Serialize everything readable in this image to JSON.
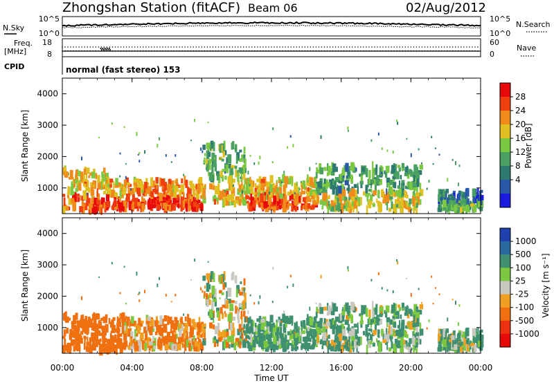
{
  "header": {
    "title": "Zhongshan Station (fitACF)",
    "beam": "Beam 06",
    "date": "02/Aug/2012"
  },
  "noise_panel": {
    "left_label": "N.Sky",
    "right_label": "N.Search",
    "left_ticks": [
      "10^5",
      "10^0"
    ],
    "right_ticks": [
      "10^5",
      "10^0"
    ]
  },
  "freq_panel": {
    "left_label_line1": "Freq.",
    "left_label_line2": "[MHz]",
    "right_label": "Nave",
    "left_ticks": [
      "18",
      "8"
    ],
    "right_ticks": [
      "60",
      "0"
    ]
  },
  "cpid_panel": {
    "label": "CPID",
    "value": "normal (fast stereo) 153"
  },
  "power_panel": {
    "ylabel": "Slant Range [km]",
    "colorbar_label": "Power [dB]",
    "colorbar_ticks": [
      "28",
      "24",
      "20",
      "16",
      "12",
      "8",
      "4"
    ],
    "colorbar_colors": [
      "#e80a0a",
      "#f04010",
      "#f08a1a",
      "#e0c020",
      "#7bc843",
      "#49a060",
      "#2e7a70",
      "#2a58a8",
      "#1b1be0"
    ]
  },
  "velocity_panel": {
    "ylabel": "Slant Range [km]",
    "colorbar_label": "Velocity [m s⁻¹]",
    "colorbar_ticks": [
      "1000",
      "500",
      "100",
      "25",
      "-25",
      "-100",
      "-500",
      "-1000"
    ],
    "colorbar_colors": [
      "#2040b0",
      "#2a6aa0",
      "#3f9070",
      "#7cc840",
      "#c8c8c0",
      "#f0a020",
      "#f07010",
      "#ec3010",
      "#e80a0a"
    ]
  },
  "x_axis": {
    "label": "Time UT",
    "ticks": [
      "00:00",
      "04:00",
      "08:00",
      "12:00",
      "16:00",
      "20:00",
      "00:00"
    ]
  },
  "chart_data": [
    {
      "type": "line",
      "name": "noise",
      "ylabel_left": "N.Sky",
      "ylabel_right": "N.Search",
      "x_range_hours": [
        0,
        24
      ],
      "y_scale": "log",
      "ylim": [
        1,
        100000
      ]
    },
    {
      "type": "scatter",
      "name": "frequency",
      "ylabel_left": "Freq. [MHz]",
      "ylabel_right": "Nave",
      "left_ylim": [
        8,
        18
      ],
      "right_ylim": [
        0,
        60
      ],
      "x_range_hours": [
        0,
        24
      ]
    },
    {
      "type": "heatmap",
      "name": "power",
      "title": "Beam 06",
      "xlabel": "Time UT",
      "ylabel": "Slant Range [km]",
      "x_range_hours": [
        0,
        24
      ],
      "ylim": [
        180,
        4500
      ],
      "y_ticks": [
        1000,
        2000,
        3000,
        4000
      ],
      "colorbar_label": "Power [dB]",
      "colorbar_ticks": [
        4,
        8,
        12,
        16,
        20,
        24,
        28
      ],
      "echo_regions": [
        {
          "t": [
            0.0,
            2.5
          ],
          "range_km": [
            250,
            1600
          ],
          "power_db": 22
        },
        {
          "t": [
            2.5,
            8.0
          ],
          "range_km": [
            350,
            1250
          ],
          "power_db": 24
        },
        {
          "t": [
            8.0,
            10.5
          ],
          "range_km": [
            500,
            2400
          ],
          "power_db": 16
        },
        {
          "t": [
            10.5,
            14.5
          ],
          "range_km": [
            350,
            1300
          ],
          "power_db": 22
        },
        {
          "t": [
            14.5,
            20.5
          ],
          "range_km": [
            300,
            1700
          ],
          "power_db": 14
        },
        {
          "t": [
            21.5,
            24.0
          ],
          "range_km": [
            300,
            900
          ],
          "power_db": 10
        }
      ]
    },
    {
      "type": "heatmap",
      "name": "velocity",
      "xlabel": "Time UT",
      "ylabel": "Slant Range [km]",
      "x_range_hours": [
        0,
        24
      ],
      "ylim": [
        180,
        4500
      ],
      "y_ticks": [
        1000,
        2000,
        3000,
        4000
      ],
      "colorbar_label": "Velocity [m s-1]",
      "colorbar_ticks": [
        -1000,
        -500,
        -100,
        -25,
        25,
        100,
        500,
        1000
      ],
      "echo_regions": [
        {
          "t": [
            0.0,
            3.5
          ],
          "range_km": [
            250,
            1400
          ],
          "velocity_ms": -300
        },
        {
          "t": [
            3.5,
            8.0
          ],
          "range_km": [
            350,
            1300
          ],
          "velocity_ms": -150
        },
        {
          "t": [
            8.0,
            10.5
          ],
          "range_km": [
            400,
            2700
          ],
          "velocity_ms": 0
        },
        {
          "t": [
            10.5,
            14.5
          ],
          "range_km": [
            350,
            1300
          ],
          "velocity_ms": 200
        },
        {
          "t": [
            14.5,
            20.5
          ],
          "range_km": [
            300,
            1700
          ],
          "velocity_ms": 150
        },
        {
          "t": [
            21.5,
            24.0
          ],
          "range_km": [
            300,
            900
          ],
          "velocity_ms": 120
        }
      ]
    }
  ]
}
